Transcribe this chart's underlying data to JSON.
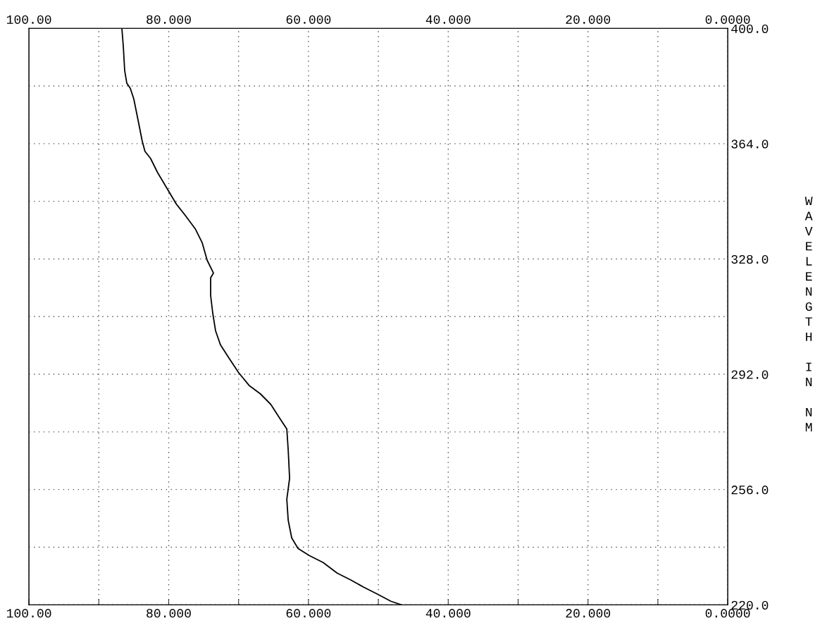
{
  "chart_data": {
    "type": "line",
    "ylabel": "WAVELENGTH IN NM",
    "color": "#000000",
    "grid": true,
    "line_style": "solid",
    "x": [
      86.7,
      86.5,
      86.3,
      86.0,
      85.5,
      85.0,
      84.4,
      83.8,
      83.4,
      82.6,
      81.6,
      80.1,
      78.9,
      77.7,
      76.2,
      75.2,
      74.5,
      73.6,
      74.0,
      74.0,
      73.7,
      73.3,
      72.6,
      71.3,
      70.0,
      68.5,
      66.9,
      65.4,
      64.1,
      63.1,
      62.9,
      62.7,
      63.1,
      62.9,
      62.4,
      61.5,
      59.9,
      57.9,
      55.9,
      53.9,
      52.1,
      50.1,
      48.2,
      46.7
    ],
    "values": [
      400,
      394.5,
      386.8,
      382.9,
      381.3,
      378,
      371.5,
      364.9,
      361.6,
      359.4,
      355,
      349.5,
      345.1,
      341.8,
      337.4,
      333,
      327.6,
      323.6,
      322.1,
      316.6,
      311.1,
      305.6,
      301.2,
      296.8,
      292.5,
      288.5,
      285.9,
      282.6,
      278.2,
      274.9,
      268.3,
      259.5,
      252.9,
      246.4,
      240.9,
      237.6,
      235.4,
      233.2,
      229.9,
      227.7,
      225.5,
      223.3,
      221.1,
      220
    ],
    "xlim": [
      100,
      0
    ],
    "xticks": [
      {
        "value": 100,
        "label": "100.00"
      },
      {
        "value": 90,
        "label": null
      },
      {
        "value": 80,
        "label": "80.000"
      },
      {
        "value": 70,
        "label": null
      },
      {
        "value": 60,
        "label": "60.000"
      },
      {
        "value": 50,
        "label": null
      },
      {
        "value": 40,
        "label": "40.000"
      },
      {
        "value": 30,
        "label": null
      },
      {
        "value": 20,
        "label": "20.000"
      },
      {
        "value": 10,
        "label": null
      },
      {
        "value": 0,
        "label": "0.0000"
      }
    ],
    "x2lim": [
      100,
      0
    ],
    "x2ticks": [
      {
        "value": 100,
        "label": "100.00"
      },
      {
        "value": 90,
        "label": null
      },
      {
        "value": 80,
        "label": "80.000"
      },
      {
        "value": 70,
        "label": null
      },
      {
        "value": 60,
        "label": "60.000"
      },
      {
        "value": 50,
        "label": null
      },
      {
        "value": 40,
        "label": "40.000"
      },
      {
        "value": 30,
        "label": null
      },
      {
        "value": 20,
        "label": "20.000"
      },
      {
        "value": 10,
        "label": null
      },
      {
        "value": 0,
        "label": "0.0000"
      }
    ],
    "ylim": [
      220,
      400
    ],
    "yticks": [
      {
        "value": 220,
        "label": "220.0"
      },
      {
        "value": 238,
        "label": null
      },
      {
        "value": 256,
        "label": "256.0"
      },
      {
        "value": 274,
        "label": null
      },
      {
        "value": 292,
        "label": "292.0"
      },
      {
        "value": 310,
        "label": null
      },
      {
        "value": 328,
        "label": "328.0"
      },
      {
        "value": 346,
        "label": null
      },
      {
        "value": 364,
        "label": "364.0"
      },
      {
        "value": 382,
        "label": null
      },
      {
        "value": 400,
        "label": "400.0"
      }
    ]
  }
}
